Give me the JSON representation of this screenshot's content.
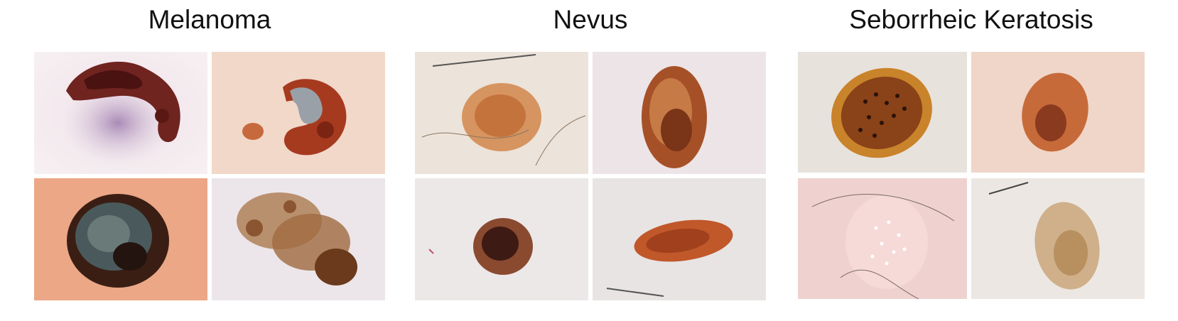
{
  "groups": [
    {
      "title": "Melanoma"
    },
    {
      "title": "Nevus"
    },
    {
      "title": "Seborrheic Keratosis"
    }
  ]
}
